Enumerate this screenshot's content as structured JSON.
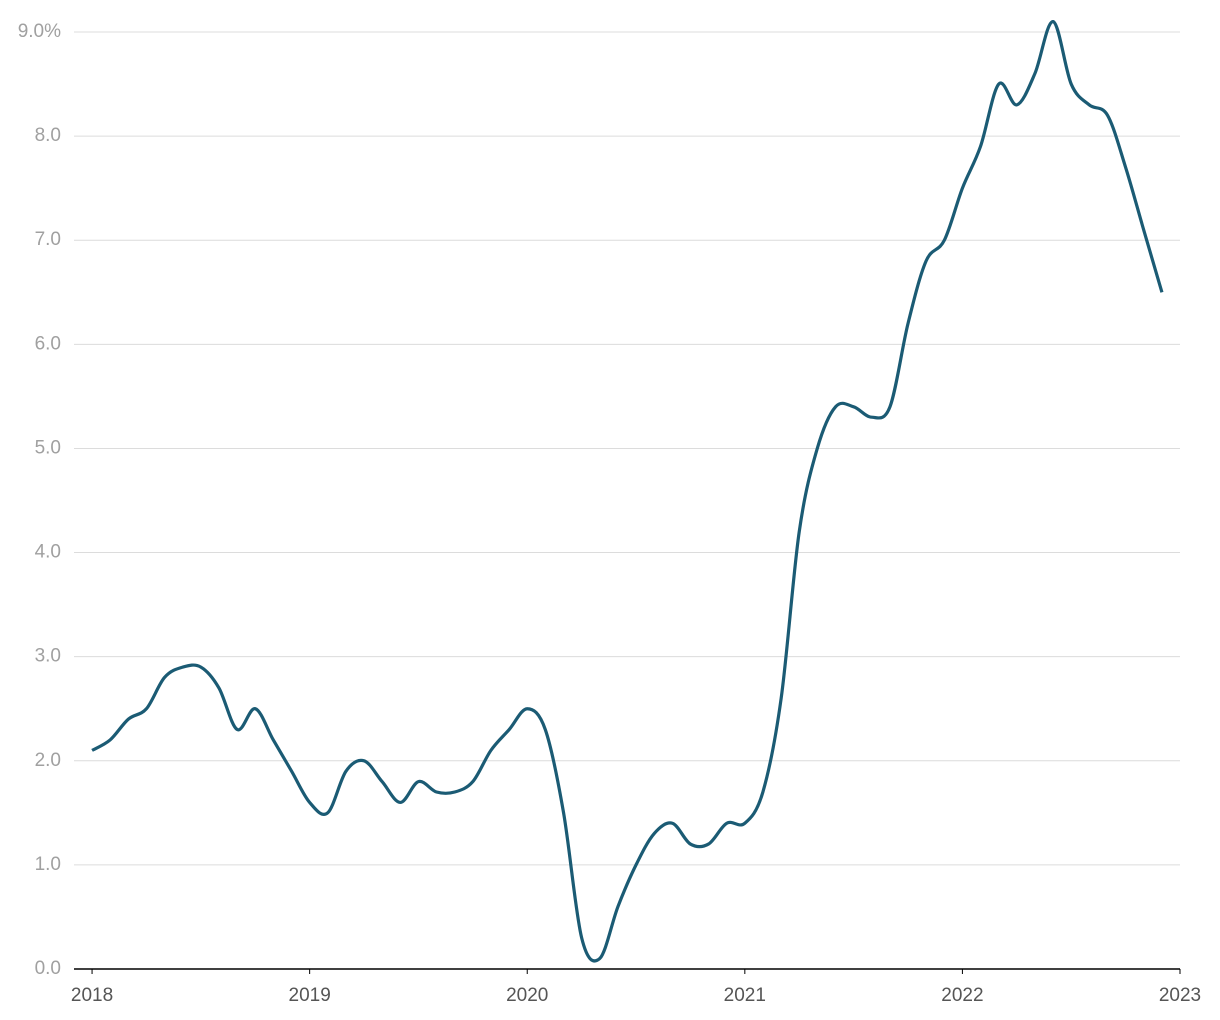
{
  "chart_data": {
    "type": "line",
    "x": [
      2018,
      2018.083,
      2018.167,
      2018.25,
      2018.333,
      2018.417,
      2018.5,
      2018.583,
      2018.667,
      2018.75,
      2018.833,
      2018.917,
      2019,
      2019.083,
      2019.167,
      2019.25,
      2019.333,
      2019.417,
      2019.5,
      2019.583,
      2019.667,
      2019.75,
      2019.833,
      2019.917,
      2020,
      2020.083,
      2020.167,
      2020.25,
      2020.333,
      2020.417,
      2020.5,
      2020.583,
      2020.667,
      2020.75,
      2020.833,
      2020.917,
      2021,
      2021.083,
      2021.167,
      2021.25,
      2021.333,
      2021.417,
      2021.5,
      2021.583,
      2021.667,
      2021.75,
      2021.833,
      2021.917,
      2022,
      2022.083,
      2022.167,
      2022.25,
      2022.333,
      2022.417,
      2022.5,
      2022.583,
      2022.667,
      2022.75,
      2022.833,
      2022.917
    ],
    "series": [
      {
        "color": "#1b5b74",
        "values": [
          2.1,
          2.2,
          2.4,
          2.5,
          2.8,
          2.9,
          2.9,
          2.7,
          2.3,
          2.5,
          2.2,
          1.9,
          1.6,
          1.5,
          1.9,
          2.0,
          1.8,
          1.6,
          1.8,
          1.7,
          1.7,
          1.8,
          2.1,
          2.3,
          2.5,
          2.3,
          1.5,
          0.3,
          0.1,
          0.6,
          1.0,
          1.3,
          1.4,
          1.2,
          1.2,
          1.4,
          1.4,
          1.7,
          2.6,
          4.2,
          5.0,
          5.4,
          5.4,
          5.3,
          5.4,
          6.2,
          6.8,
          7.0,
          7.5,
          7.9,
          8.5,
          8.3,
          8.6,
          9.1,
          8.5,
          8.3,
          8.2,
          7.7,
          7.1,
          6.5
        ]
      }
    ],
    "xlim": [
      2017.917,
      2023
    ],
    "xticks": [
      2018,
      2019,
      2020,
      2021,
      2022,
      2023
    ],
    "ylim": [
      0,
      9
    ],
    "yticks": [
      {
        "value": 0,
        "label": "0.0"
      },
      {
        "value": 1,
        "label": "1.0"
      },
      {
        "value": 2,
        "label": "2.0"
      },
      {
        "value": 3,
        "label": "3.0"
      },
      {
        "value": 4,
        "label": "4.0"
      },
      {
        "value": 5,
        "label": "5.0"
      },
      {
        "value": 6,
        "label": "6.0"
      },
      {
        "value": 7,
        "label": "7.0"
      },
      {
        "value": 8,
        "label": "8.0"
      },
      {
        "value": 9,
        "label": "9.0%"
      }
    ],
    "grid": true
  }
}
